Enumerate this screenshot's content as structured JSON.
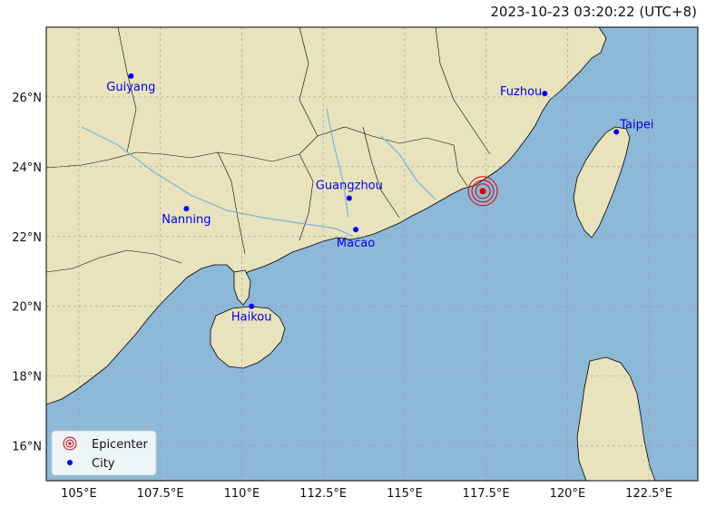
{
  "title": "2023-10-23 03:20:22 (UTC+8)",
  "colors": {
    "sea": "#8db8d8",
    "land": "#e8e3bd",
    "land_edge": "#000000",
    "city": "#0000ee",
    "epicenter": "#d40000",
    "grid": "#9a9a9a"
  },
  "extent": {
    "lon": [
      104.0,
      124.0
    ],
    "lat": [
      15.0,
      28.0
    ]
  },
  "lon_ticks": [
    {
      "value": 105,
      "label": "105°E"
    },
    {
      "value": 107.5,
      "label": "107.5°E"
    },
    {
      "value": 110,
      "label": "110°E"
    },
    {
      "value": 112.5,
      "label": "112.5°E"
    },
    {
      "value": 115,
      "label": "115°E"
    },
    {
      "value": 117.5,
      "label": "117.5°E"
    },
    {
      "value": 120,
      "label": "120°E"
    },
    {
      "value": 122.5,
      "label": "122.5°E"
    }
  ],
  "lat_ticks": [
    {
      "value": 16,
      "label": "16°N"
    },
    {
      "value": 18,
      "label": "18°N"
    },
    {
      "value": 20,
      "label": "20°N"
    },
    {
      "value": 22,
      "label": "22°N"
    },
    {
      "value": 24,
      "label": "24°N"
    },
    {
      "value": 26,
      "label": "26°N"
    }
  ],
  "cities": [
    {
      "name": "Guiyang",
      "lon": 106.6,
      "lat": 26.6
    },
    {
      "name": "Fuzhou",
      "lon": 119.3,
      "lat": 26.1
    },
    {
      "name": "Taipei",
      "lon": 121.5,
      "lat": 25.0
    },
    {
      "name": "Guangzhou",
      "lon": 113.3,
      "lat": 23.1
    },
    {
      "name": "Nanning",
      "lon": 108.3,
      "lat": 22.8
    },
    {
      "name": "Macao",
      "lon": 113.5,
      "lat": 22.2
    },
    {
      "name": "Haikou",
      "lon": 110.3,
      "lat": 20.0
    }
  ],
  "epicenter": {
    "lon": 117.4,
    "lat": 23.3
  },
  "legend": {
    "position": "lower-left",
    "items": [
      {
        "label": "Epicenter",
        "icon": "epicenter-rings-icon"
      },
      {
        "label": "City",
        "icon": "city-dot-icon"
      }
    ]
  }
}
